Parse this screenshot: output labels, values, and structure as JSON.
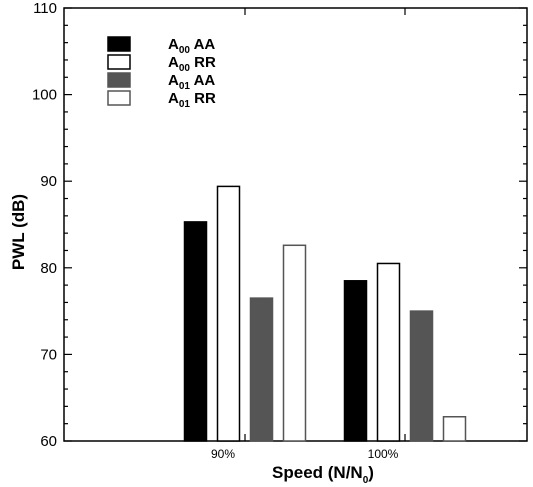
{
  "chart_data": {
    "type": "bar",
    "title": "",
    "xlabel": {
      "main": "Speed (N/N",
      "sub": "0",
      "close": ")"
    },
    "ylabel": "PWL (dB)",
    "ylim": [
      60,
      110
    ],
    "yticks": [
      "60",
      "70",
      "80",
      "90",
      "100",
      "110"
    ],
    "categories": [
      "90%",
      "100%"
    ],
    "legend_position": "top-left",
    "series": [
      {
        "label_main": "A",
        "label_sub": "00",
        "label_suffix": " AA",
        "values": [
          85.3,
          78.5
        ],
        "fill": "#000000",
        "stroke": "#000000"
      },
      {
        "label_main": "A",
        "label_sub": "00",
        "label_suffix": " RR",
        "values": [
          89.4,
          80.5
        ],
        "fill": "#ffffff",
        "stroke": "#000000"
      },
      {
        "label_main": "A",
        "label_sub": "01",
        "label_suffix": " AA",
        "values": [
          76.5,
          75.0
        ],
        "fill": "#555555",
        "stroke": "#555555"
      },
      {
        "label_main": "A",
        "label_sub": "01",
        "label_suffix": " RR",
        "values": [
          82.6,
          62.8
        ],
        "fill": "#ffffff",
        "stroke": "#555555"
      }
    ]
  }
}
